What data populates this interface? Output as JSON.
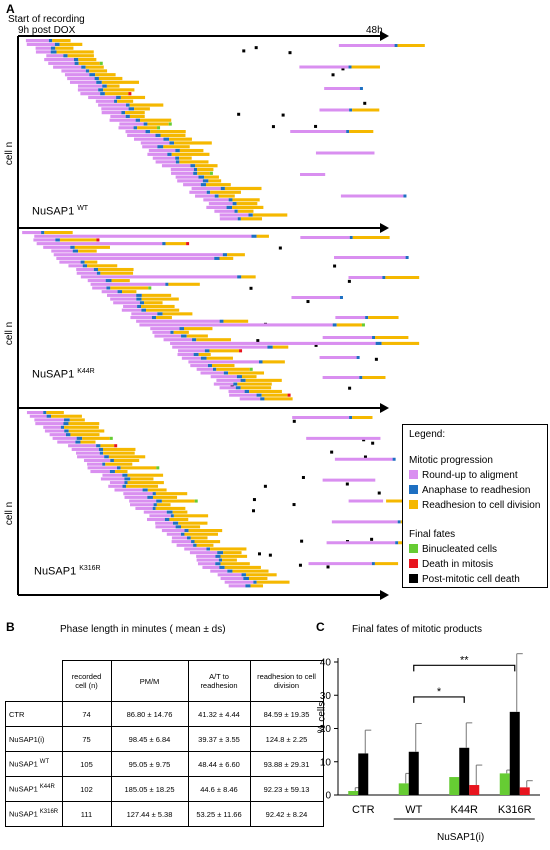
{
  "panel_a": {
    "letter": "A",
    "start_label_1": "Start of recording",
    "start_label_2": "9h post DOX",
    "end_label": "48h",
    "y_axis_label": "cell n",
    "tracks": [
      {
        "name": "NuSAP1",
        "superscript": "WT"
      },
      {
        "name": "NuSAP1",
        "superscript": "K44R"
      },
      {
        "name": "NuSAP1",
        "superscript": "K316R"
      }
    ],
    "colors": {
      "roundup": "#d98ff0",
      "anaphase": "#1e6fc2",
      "readhesion": "#f5b800",
      "binucleated": "#66cc33",
      "death_mitosis": "#e8141e",
      "postmitotic": "#000000"
    },
    "legend": {
      "title": "Legend:",
      "mitotic_header": "Mitotic progression",
      "items_mitotic": [
        "Round-up to aligment",
        "Anaphase to readhesion",
        "Readhesion to cell division"
      ],
      "fates_header": "Final fates",
      "items_fates": [
        "Binucleated cells",
        "Death in mitosis",
        "Post-mitotic cell death"
      ]
    }
  },
  "panel_b": {
    "letter": "B",
    "title": "Phase length in minutes ( mean ± ds)",
    "headers": [
      "",
      "recorded cell (n)",
      "PM/M",
      "A/T to readhesion",
      "readhesion to cell division"
    ],
    "rows": [
      {
        "label": "CTR",
        "sup": "",
        "n": "74",
        "pm": "86.80 ± 14.76",
        "at": "41.32 ± 4.44",
        "rd": "84.59 ± 19.35"
      },
      {
        "label": "NuSAP1(i)",
        "sup": "",
        "n": "75",
        "pm": "98.45 ± 6.84",
        "at": "39.37 ± 3.55",
        "rd": "124.8 ± 2.25"
      },
      {
        "label": "NuSAP1",
        "sup": "WT",
        "n": "105",
        "pm": "95.05 ± 9.75",
        "at": "48.44 ± 6.60",
        "rd": "93.88 ± 29.31"
      },
      {
        "label": "NuSAP1",
        "sup": "K44R",
        "n": "102",
        "pm": "185.05 ± 18.25",
        "at": "44.6 ± 8.46",
        "rd": "92.23 ± 59.13"
      },
      {
        "label": "NuSAP1",
        "sup": "K316R",
        "n": "111",
        "pm": "127.44 ± 5.38",
        "at": "53.25 ± 11.66",
        "rd": "92.42 ± 8.24"
      }
    ]
  },
  "chart_data": {
    "type": "bar",
    "letter": "C",
    "title": "Final fates of mitotic products",
    "ylabel": "% cells",
    "xlabel": "NuSAP1(i)",
    "ylim": [
      0,
      40
    ],
    "yticks": [
      0,
      10,
      20,
      30,
      40
    ],
    "categories": [
      "CTR",
      "WT",
      "K44R",
      "K316R"
    ],
    "series": [
      {
        "color": "#66cc33",
        "values": [
          1.2,
          3.5,
          5.4,
          6.5
        ],
        "errors": [
          1.0,
          3.0,
          0.0,
          1.0
        ]
      },
      {
        "color": "#000000",
        "values": [
          12.5,
          13.0,
          14.2,
          25.0
        ],
        "errors": [
          7.0,
          8.5,
          7.5,
          17.5
        ]
      },
      {
        "color": "#e8141e",
        "values": [
          0,
          0,
          3.0,
          2.3
        ],
        "errors": [
          0,
          0,
          6.0,
          2.0
        ]
      }
    ],
    "significance": [
      {
        "from": "WT",
        "to": "K44R",
        "label": "*"
      },
      {
        "from": "WT",
        "to": "K316R",
        "label": "**"
      }
    ]
  }
}
